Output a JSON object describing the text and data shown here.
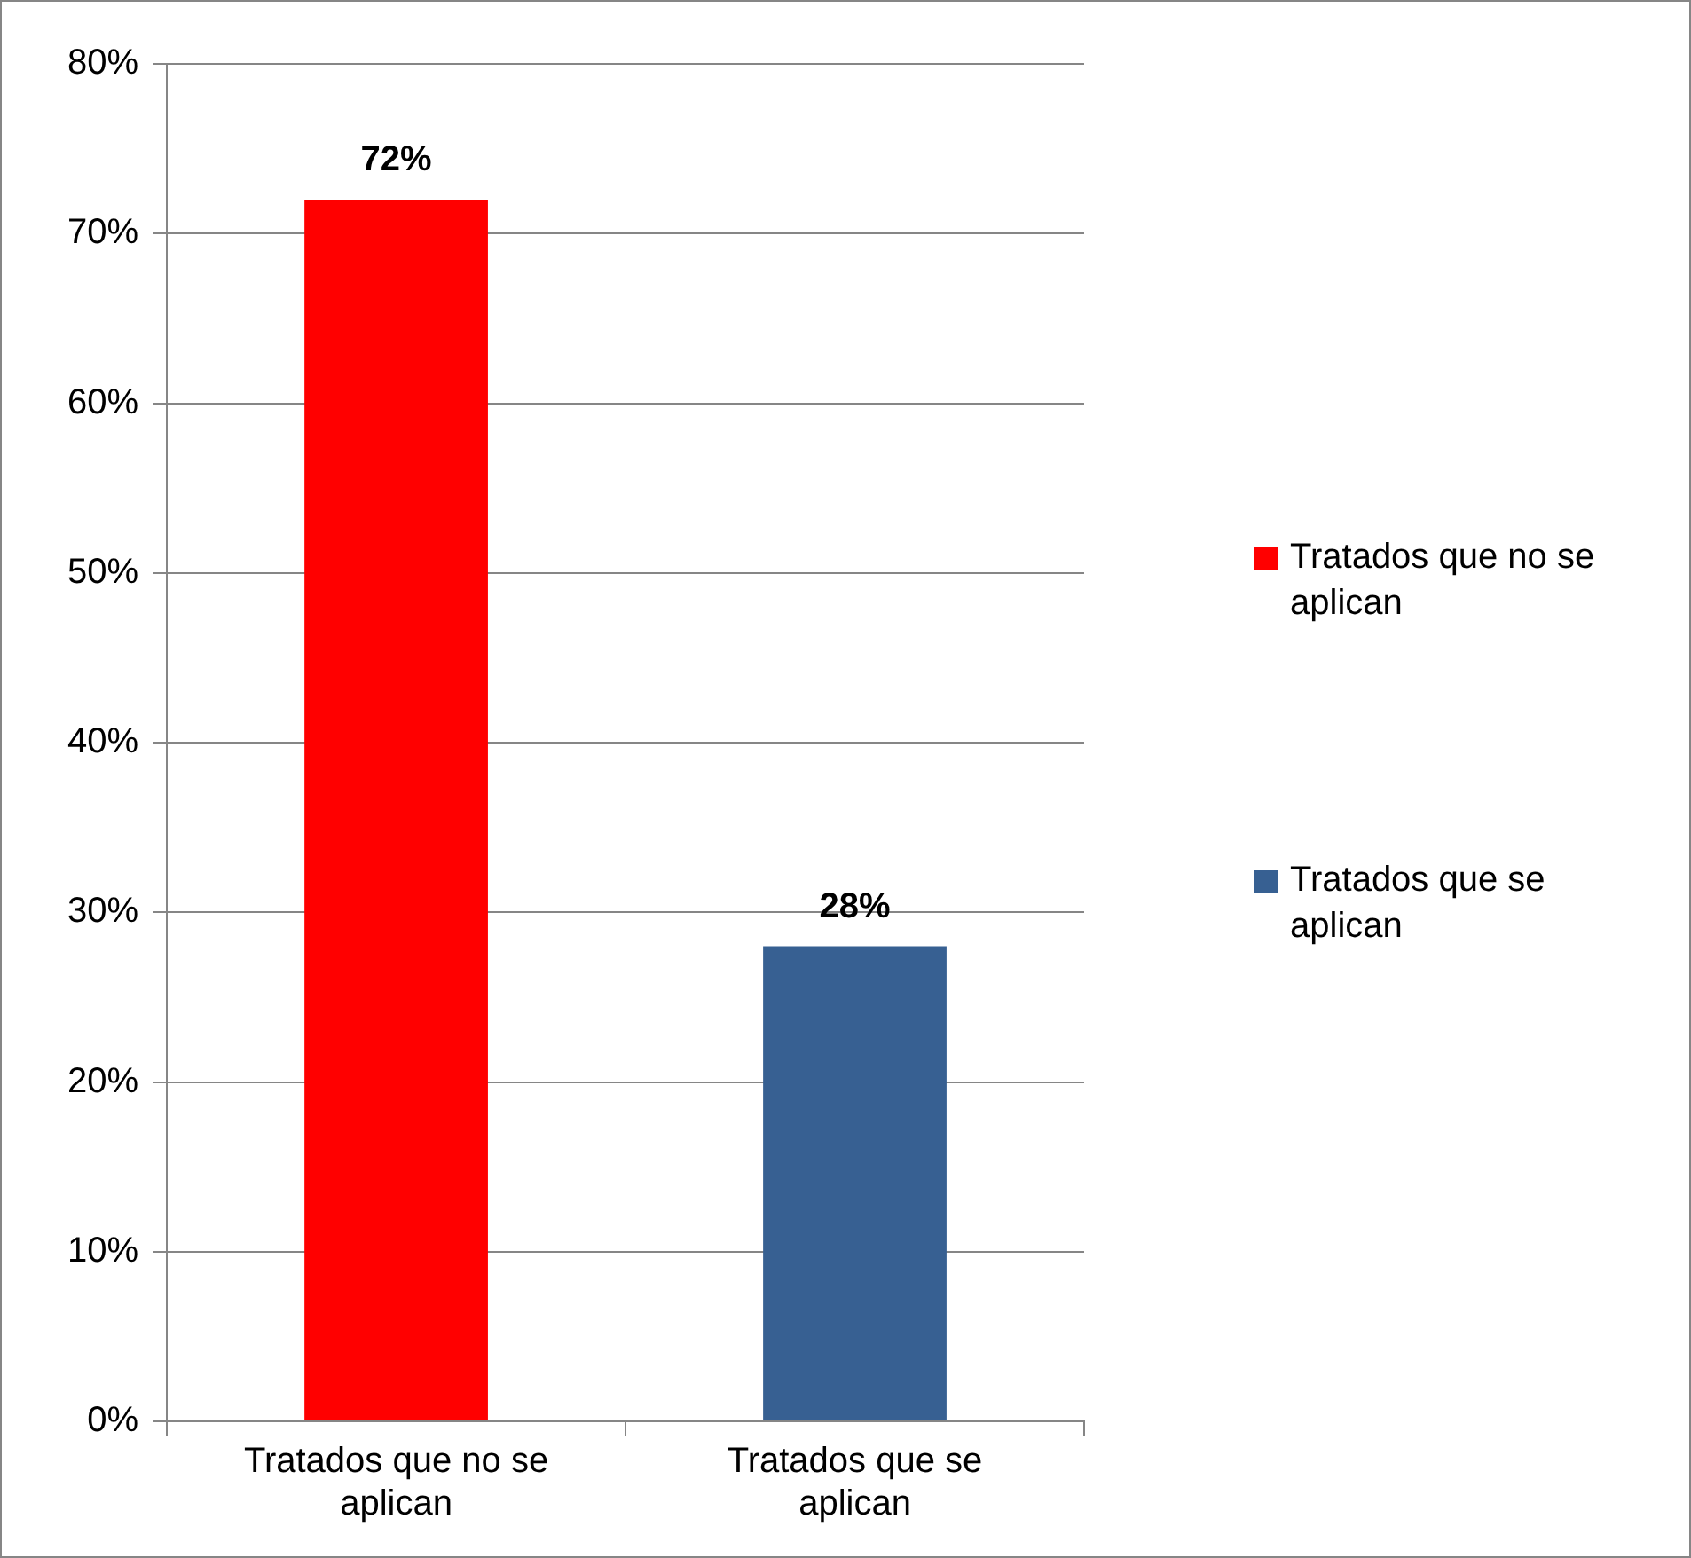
{
  "chart_data": {
    "type": "bar",
    "categories": [
      "Tratados que no se aplican",
      "Tratados que se aplican"
    ],
    "series": [
      {
        "name": "Tratados que no se aplican",
        "color": "#ff0000",
        "values": [
          72,
          null
        ],
        "value_labels": [
          "72%",
          null
        ]
      },
      {
        "name": "Tratados que se aplican",
        "color": "#376092",
        "values": [
          null,
          28
        ],
        "value_labels": [
          null,
          "28%"
        ]
      }
    ],
    "ylim": [
      0,
      80
    ],
    "yticks": [
      {
        "value": 0,
        "label": "0%"
      },
      {
        "value": 10,
        "label": "10%"
      },
      {
        "value": 20,
        "label": "20%"
      },
      {
        "value": 30,
        "label": "30%"
      },
      {
        "value": 40,
        "label": "40%"
      },
      {
        "value": 50,
        "label": "50%"
      },
      {
        "value": 60,
        "label": "60%"
      },
      {
        "value": 70,
        "label": "70%"
      },
      {
        "value": 80,
        "label": "80%"
      }
    ],
    "grid": "y",
    "legend": "right"
  }
}
